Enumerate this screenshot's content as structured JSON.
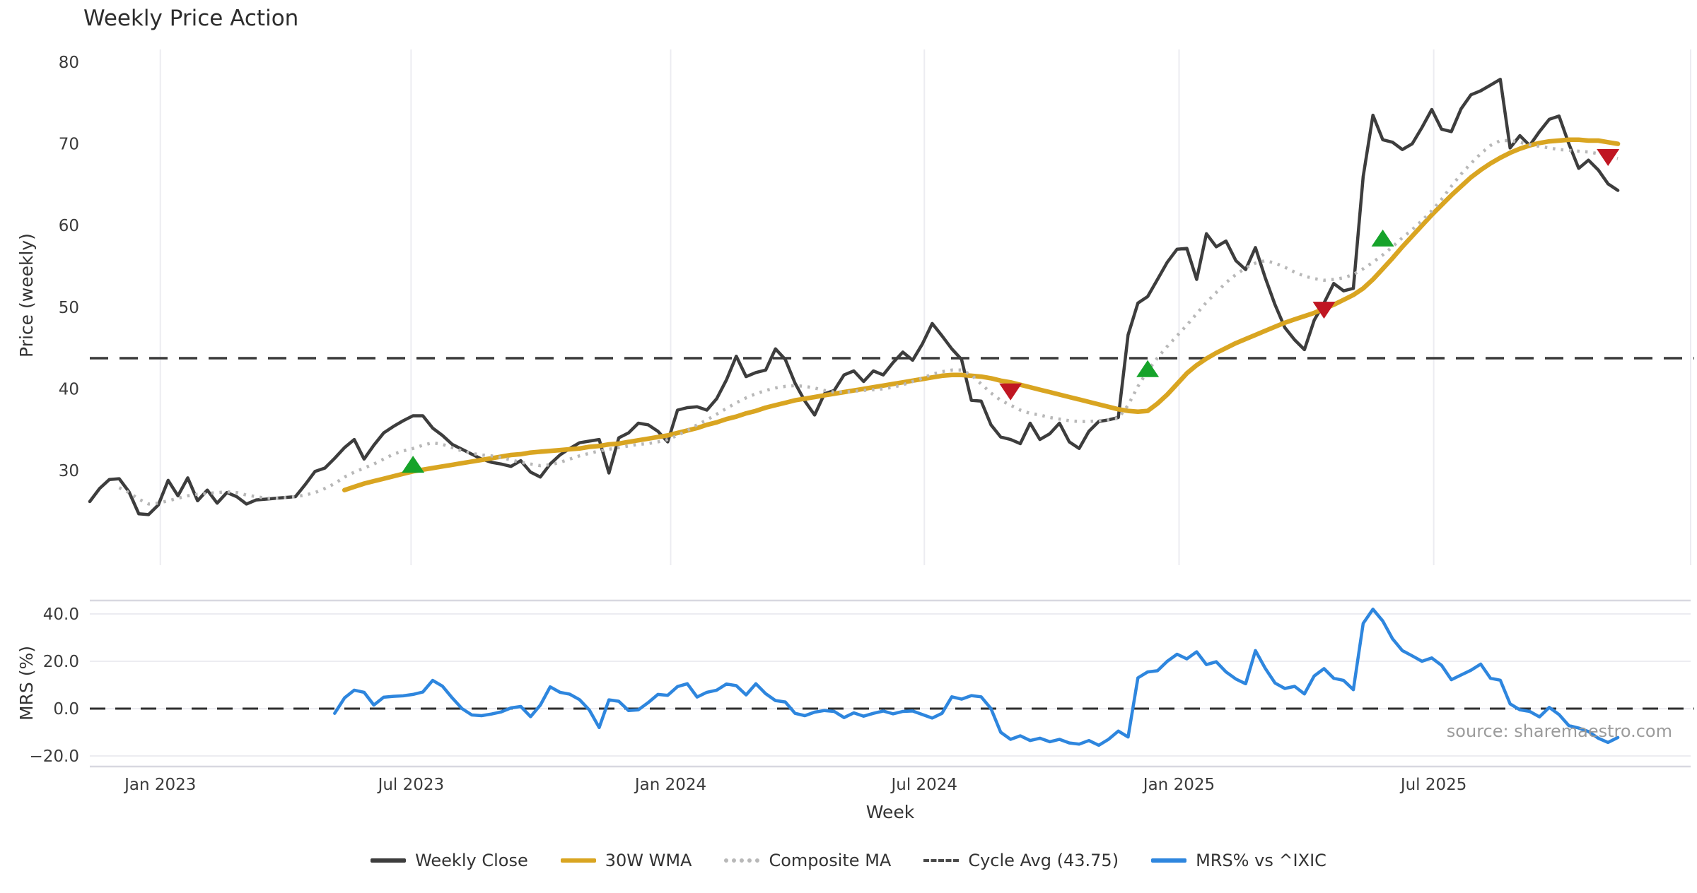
{
  "title": "Weekly Price Action",
  "source_note": "source: sharemaestro.com",
  "axis": {
    "xlabel": "Week"
  },
  "legend": {
    "items": [
      {
        "label": "Weekly Close",
        "color": "#3d3d3d",
        "style": "solid"
      },
      {
        "label": "30W WMA",
        "color": "#d9a521",
        "style": "solid"
      },
      {
        "label": "Composite MA",
        "color": "#b8b8b8",
        "style": "dotted"
      },
      {
        "label": "Cycle Avg (43.75)",
        "color": "#4a4a4a",
        "style": "dashed"
      },
      {
        "label": "MRS% vs ^IXIC",
        "color": "#2e86de",
        "style": "solid"
      }
    ]
  },
  "chart_data": {
    "type": "line",
    "frequency": "weekly",
    "x_unit": "week_index",
    "xlabel": "Week",
    "grid": {
      "price_panel": "vertical-only",
      "mrs_panel": "horizontal-only"
    },
    "style": {
      "grid_color": "#ececf1",
      "border_color": "#d8d8e0",
      "tick_color": "#3b3b3b",
      "axis_title_color": "#333333",
      "source_color": "#9b9b9b",
      "background": "#ffffff"
    },
    "x_ticks": [
      {
        "label": "Jan 2023",
        "week": 7.2
      },
      {
        "label": "Jul 2023",
        "week": 32.8
      },
      {
        "label": "Jan 2024",
        "week": 59.3
      },
      {
        "label": "Jul 2024",
        "week": 85.2
      },
      {
        "label": "Jan 2025",
        "week": 111.2
      },
      {
        "label": "Jul 2025",
        "week": 137.2
      }
    ],
    "panels": [
      {
        "name": "price",
        "ylabel": "Price (weekly)",
        "yticks": [
          {
            "label": "30",
            "value": 30
          },
          {
            "label": "40",
            "value": 40
          },
          {
            "label": "50",
            "value": 50
          },
          {
            "label": "60",
            "value": 60
          },
          {
            "label": "70",
            "value": 70
          },
          {
            "label": "80",
            "value": 80
          }
        ]
      },
      {
        "name": "mrs",
        "ylabel": "MRS (%)",
        "yticks": [
          {
            "label": "−20.0",
            "value": -20
          },
          {
            "label": "0.0",
            "value": 0
          },
          {
            "label": "20.0",
            "value": 20
          },
          {
            "label": "40.0",
            "value": 40
          }
        ]
      }
    ],
    "reference_lines": [
      {
        "name": "Cycle Avg (43.75)",
        "panel": "price",
        "value": 43.75,
        "style": "dashed",
        "color": "#3a3a3a"
      },
      {
        "name": "Zero Line",
        "panel": "mrs",
        "value": 0,
        "style": "dashed",
        "color": "#2f2f2f"
      }
    ],
    "series": [
      {
        "name": "Weekly Close",
        "panel": "price",
        "color": "#3d3d3d",
        "style": "solid",
        "width": 4.5,
        "start_week": 0,
        "values": [
          26.2,
          27.8,
          28.9,
          29.0,
          27.4,
          24.7,
          24.6,
          25.8,
          28.8,
          26.9,
          29.1,
          26.3,
          27.6,
          26.0,
          27.3,
          26.8,
          25.9,
          26.4,
          26.5,
          26.6,
          26.7,
          26.8,
          28.3,
          29.9,
          30.3,
          31.5,
          32.8,
          33.8,
          31.4,
          33.1,
          34.6,
          35.4,
          36.1,
          36.7,
          36.7,
          35.2,
          34.3,
          33.2,
          32.6,
          32.0,
          31.4,
          31.0,
          30.8,
          30.5,
          31.2,
          29.8,
          29.2,
          30.8,
          31.9,
          32.7,
          33.4,
          33.6,
          33.8,
          29.7,
          34.0,
          34.6,
          35.8,
          35.6,
          34.8,
          33.5,
          37.4,
          37.7,
          37.8,
          37.4,
          38.8,
          41.1,
          44.0,
          41.5,
          42.0,
          42.3,
          44.9,
          43.6,
          40.7,
          38.5,
          36.8,
          39.4,
          39.8,
          41.7,
          42.2,
          40.9,
          42.2,
          41.7,
          43.2,
          44.5,
          43.5,
          45.5,
          48.0,
          46.5,
          44.9,
          43.6,
          38.6,
          38.5,
          35.6,
          34.1,
          33.8,
          33.3,
          35.8,
          33.8,
          34.5,
          35.8,
          33.5,
          32.7,
          34.8,
          36.0,
          36.2,
          36.5,
          46.6,
          50.5,
          51.3,
          53.4,
          55.5,
          57.1,
          57.2,
          53.4,
          59.0,
          57.4,
          58.1,
          55.7,
          54.6,
          57.3,
          53.6,
          50.3,
          47.5,
          46.0,
          44.8,
          48.4,
          50.5,
          52.9,
          52.0,
          52.3,
          66.0,
          73.5,
          70.5,
          70.2,
          69.3,
          70.0,
          72.0,
          74.2,
          71.8,
          71.5,
          74.3,
          76.0,
          76.5,
          77.2,
          77.9,
          69.5,
          71.0,
          69.8,
          71.5,
          73.0,
          73.4,
          70.0,
          67.0,
          68.0,
          66.8,
          65.1,
          64.3
        ]
      },
      {
        "name": "30W WMA",
        "panel": "price",
        "color": "#d9a521",
        "style": "solid",
        "width": 6.5,
        "start_week": 26,
        "values": [
          27.6,
          28.0,
          28.4,
          28.7,
          29.0,
          29.3,
          29.6,
          29.9,
          30.1,
          30.3,
          30.5,
          30.7,
          30.9,
          31.1,
          31.3,
          31.5,
          31.7,
          31.9,
          32.0,
          32.2,
          32.3,
          32.4,
          32.5,
          32.6,
          32.7,
          32.9,
          33.0,
          33.2,
          33.3,
          33.5,
          33.7,
          33.9,
          34.1,
          34.3,
          34.6,
          34.9,
          35.2,
          35.6,
          35.9,
          36.3,
          36.6,
          37.0,
          37.3,
          37.7,
          38.0,
          38.3,
          38.6,
          38.8,
          39.0,
          39.2,
          39.4,
          39.6,
          39.8,
          40.0,
          40.2,
          40.4,
          40.6,
          40.8,
          41.0,
          41.2,
          41.4,
          41.6,
          41.7,
          41.7,
          41.6,
          41.5,
          41.3,
          41.0,
          40.8,
          40.5,
          40.2,
          39.9,
          39.6,
          39.3,
          39.0,
          38.7,
          38.4,
          38.1,
          37.8,
          37.5,
          37.3,
          37.2,
          37.3,
          38.2,
          39.3,
          40.6,
          41.9,
          42.9,
          43.7,
          44.4,
          45.0,
          45.6,
          46.1,
          46.6,
          47.1,
          47.6,
          48.1,
          48.5,
          48.9,
          49.3,
          49.8,
          50.3,
          50.9,
          51.5,
          52.3,
          53.4,
          54.7,
          56.0,
          57.4,
          58.7,
          60.0,
          61.3,
          62.5,
          63.7,
          64.8,
          65.9,
          66.8,
          67.6,
          68.3,
          68.9,
          69.4,
          69.8,
          70.1,
          70.3,
          70.4,
          70.5,
          70.5,
          70.4,
          70.4,
          70.2,
          70.0
        ]
      },
      {
        "name": "Composite MA",
        "panel": "price",
        "color": "#b8b8b8",
        "style": "dotted",
        "width": 4.5,
        "start_week": 3,
        "values": [
          27.9,
          27.3,
          26.5,
          25.9,
          26.0,
          26.3,
          26.6,
          26.9,
          27.1,
          27.2,
          27.3,
          27.4,
          27.3,
          27.0,
          26.8,
          26.6,
          26.6,
          26.7,
          26.8,
          27.0,
          27.3,
          27.8,
          28.4,
          29.2,
          29.8,
          30.3,
          30.8,
          31.4,
          32.0,
          32.4,
          32.7,
          33.1,
          33.4,
          33.2,
          32.8,
          32.4,
          32.1,
          31.9,
          31.8,
          31.6,
          31.3,
          31.0,
          30.8,
          30.6,
          30.7,
          31.0,
          31.4,
          31.8,
          32.1,
          32.4,
          32.6,
          32.8,
          33.0,
          33.2,
          33.3,
          33.5,
          33.8,
          34.3,
          34.9,
          35.6,
          36.2,
          36.9,
          37.6,
          38.3,
          38.9,
          39.4,
          39.8,
          40.1,
          40.3,
          40.4,
          40.3,
          40.1,
          39.8,
          39.6,
          39.6,
          39.7,
          39.8,
          39.9,
          40.0,
          40.2,
          40.5,
          40.9,
          41.3,
          41.8,
          42.1,
          42.3,
          42.3,
          41.7,
          40.6,
          39.5,
          38.6,
          38.0,
          37.4,
          37.0,
          36.8,
          36.5,
          36.3,
          36.1,
          36.0,
          36.0,
          36.1,
          36.2,
          36.4,
          38.0,
          40.3,
          42.2,
          43.8,
          45.2,
          46.5,
          47.8,
          49.2,
          50.6,
          51.8,
          53.0,
          54.0,
          54.8,
          55.4,
          55.7,
          55.4,
          54.9,
          54.3,
          53.8,
          53.5,
          53.3,
          53.4,
          53.6,
          54.0,
          54.7,
          55.5,
          56.4,
          57.4,
          58.5,
          59.5,
          60.6,
          61.8,
          63.2,
          64.8,
          66.3,
          67.6,
          68.8,
          69.8,
          70.4,
          70.4,
          70.2,
          69.9,
          69.7,
          69.5,
          69.3,
          69.2,
          69.1,
          69.0,
          68.8,
          68.5,
          68.2
        ]
      },
      {
        "name": "MRS% vs ^IXIC",
        "panel": "mrs",
        "color": "#2e86de",
        "style": "solid",
        "width": 4.5,
        "start_week": 25,
        "values": [
          -2.0,
          4.5,
          7.8,
          6.9,
          1.5,
          4.8,
          5.2,
          5.4,
          6.0,
          7.0,
          11.9,
          9.5,
          4.5,
          0.0,
          -2.7,
          -3.0,
          -2.3,
          -1.4,
          0.3,
          0.9,
          -3.4,
          1.5,
          9.2,
          6.9,
          6.1,
          3.8,
          -0.6,
          -8.0,
          3.7,
          3.1,
          -0.8,
          -0.5,
          2.5,
          6.0,
          5.6,
          9.3,
          10.5,
          4.9,
          6.9,
          7.8,
          10.4,
          9.7,
          5.8,
          10.5,
          6.3,
          3.4,
          2.8,
          -2.0,
          -3.0,
          -1.5,
          -0.8,
          -1.2,
          -3.8,
          -1.8,
          -3.2,
          -2.0,
          -1.0,
          -2.2,
          -1.2,
          -1.0,
          -2.5,
          -4.0,
          -2.0,
          5.0,
          4.0,
          5.5,
          5.0,
          0.0,
          -10.0,
          -13.0,
          -11.5,
          -13.5,
          -12.5,
          -14.0,
          -13.0,
          -14.5,
          -15.0,
          -13.5,
          -15.5,
          -13.0,
          -9.5,
          -12.0,
          13.0,
          15.5,
          16.0,
          20.0,
          23.0,
          21.0,
          24.0,
          18.6,
          19.8,
          15.5,
          12.5,
          10.5,
          24.5,
          17.0,
          10.8,
          8.5,
          9.4,
          6.2,
          13.8,
          16.9,
          12.8,
          11.9,
          8.0,
          36.0,
          42.0,
          37.0,
          29.5,
          24.5,
          22.3,
          20.0,
          21.4,
          18.3,
          12.2,
          14.2,
          16.2,
          18.8,
          12.8,
          12.0,
          2.0,
          -0.5,
          -1.2,
          -3.5,
          0.5,
          -2.5,
          -7.2,
          -8.2,
          -9.7,
          -12.5,
          -14.3,
          -12.2
        ]
      }
    ],
    "markers": [
      {
        "type": "buy",
        "shape": "triangle-up",
        "color": "#16a32a",
        "week": 33,
        "price": 30.6
      },
      {
        "type": "buy",
        "shape": "triangle-up",
        "color": "#16a32a",
        "week": 108,
        "price": 42.3
      },
      {
        "type": "buy",
        "shape": "triangle-up",
        "color": "#16a32a",
        "week": 132,
        "price": 58.3
      },
      {
        "type": "sell",
        "shape": "triangle-down",
        "color": "#c01622",
        "week": 94,
        "price": 39.8
      },
      {
        "type": "sell",
        "shape": "triangle-down",
        "color": "#c01622",
        "week": 126,
        "price": 49.8
      },
      {
        "type": "sell",
        "shape": "triangle-down",
        "color": "#c01622",
        "week": 155,
        "price": 68.5
      }
    ]
  }
}
